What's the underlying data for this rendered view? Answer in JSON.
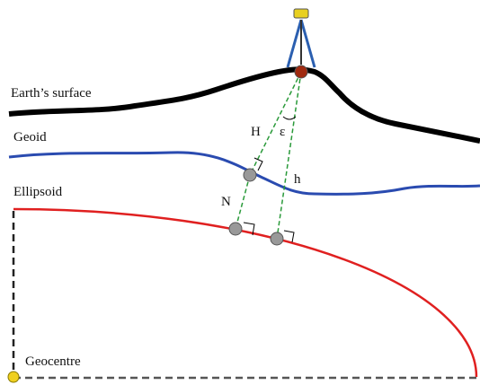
{
  "labels": {
    "earth_surface": "Earth’s surface",
    "geoid": "Geoid",
    "ellipsoid": "Ellipsoid",
    "geocentre": "Geocentre",
    "H": "H",
    "epsilon": "ε",
    "N": "N",
    "h": "h"
  }
}
